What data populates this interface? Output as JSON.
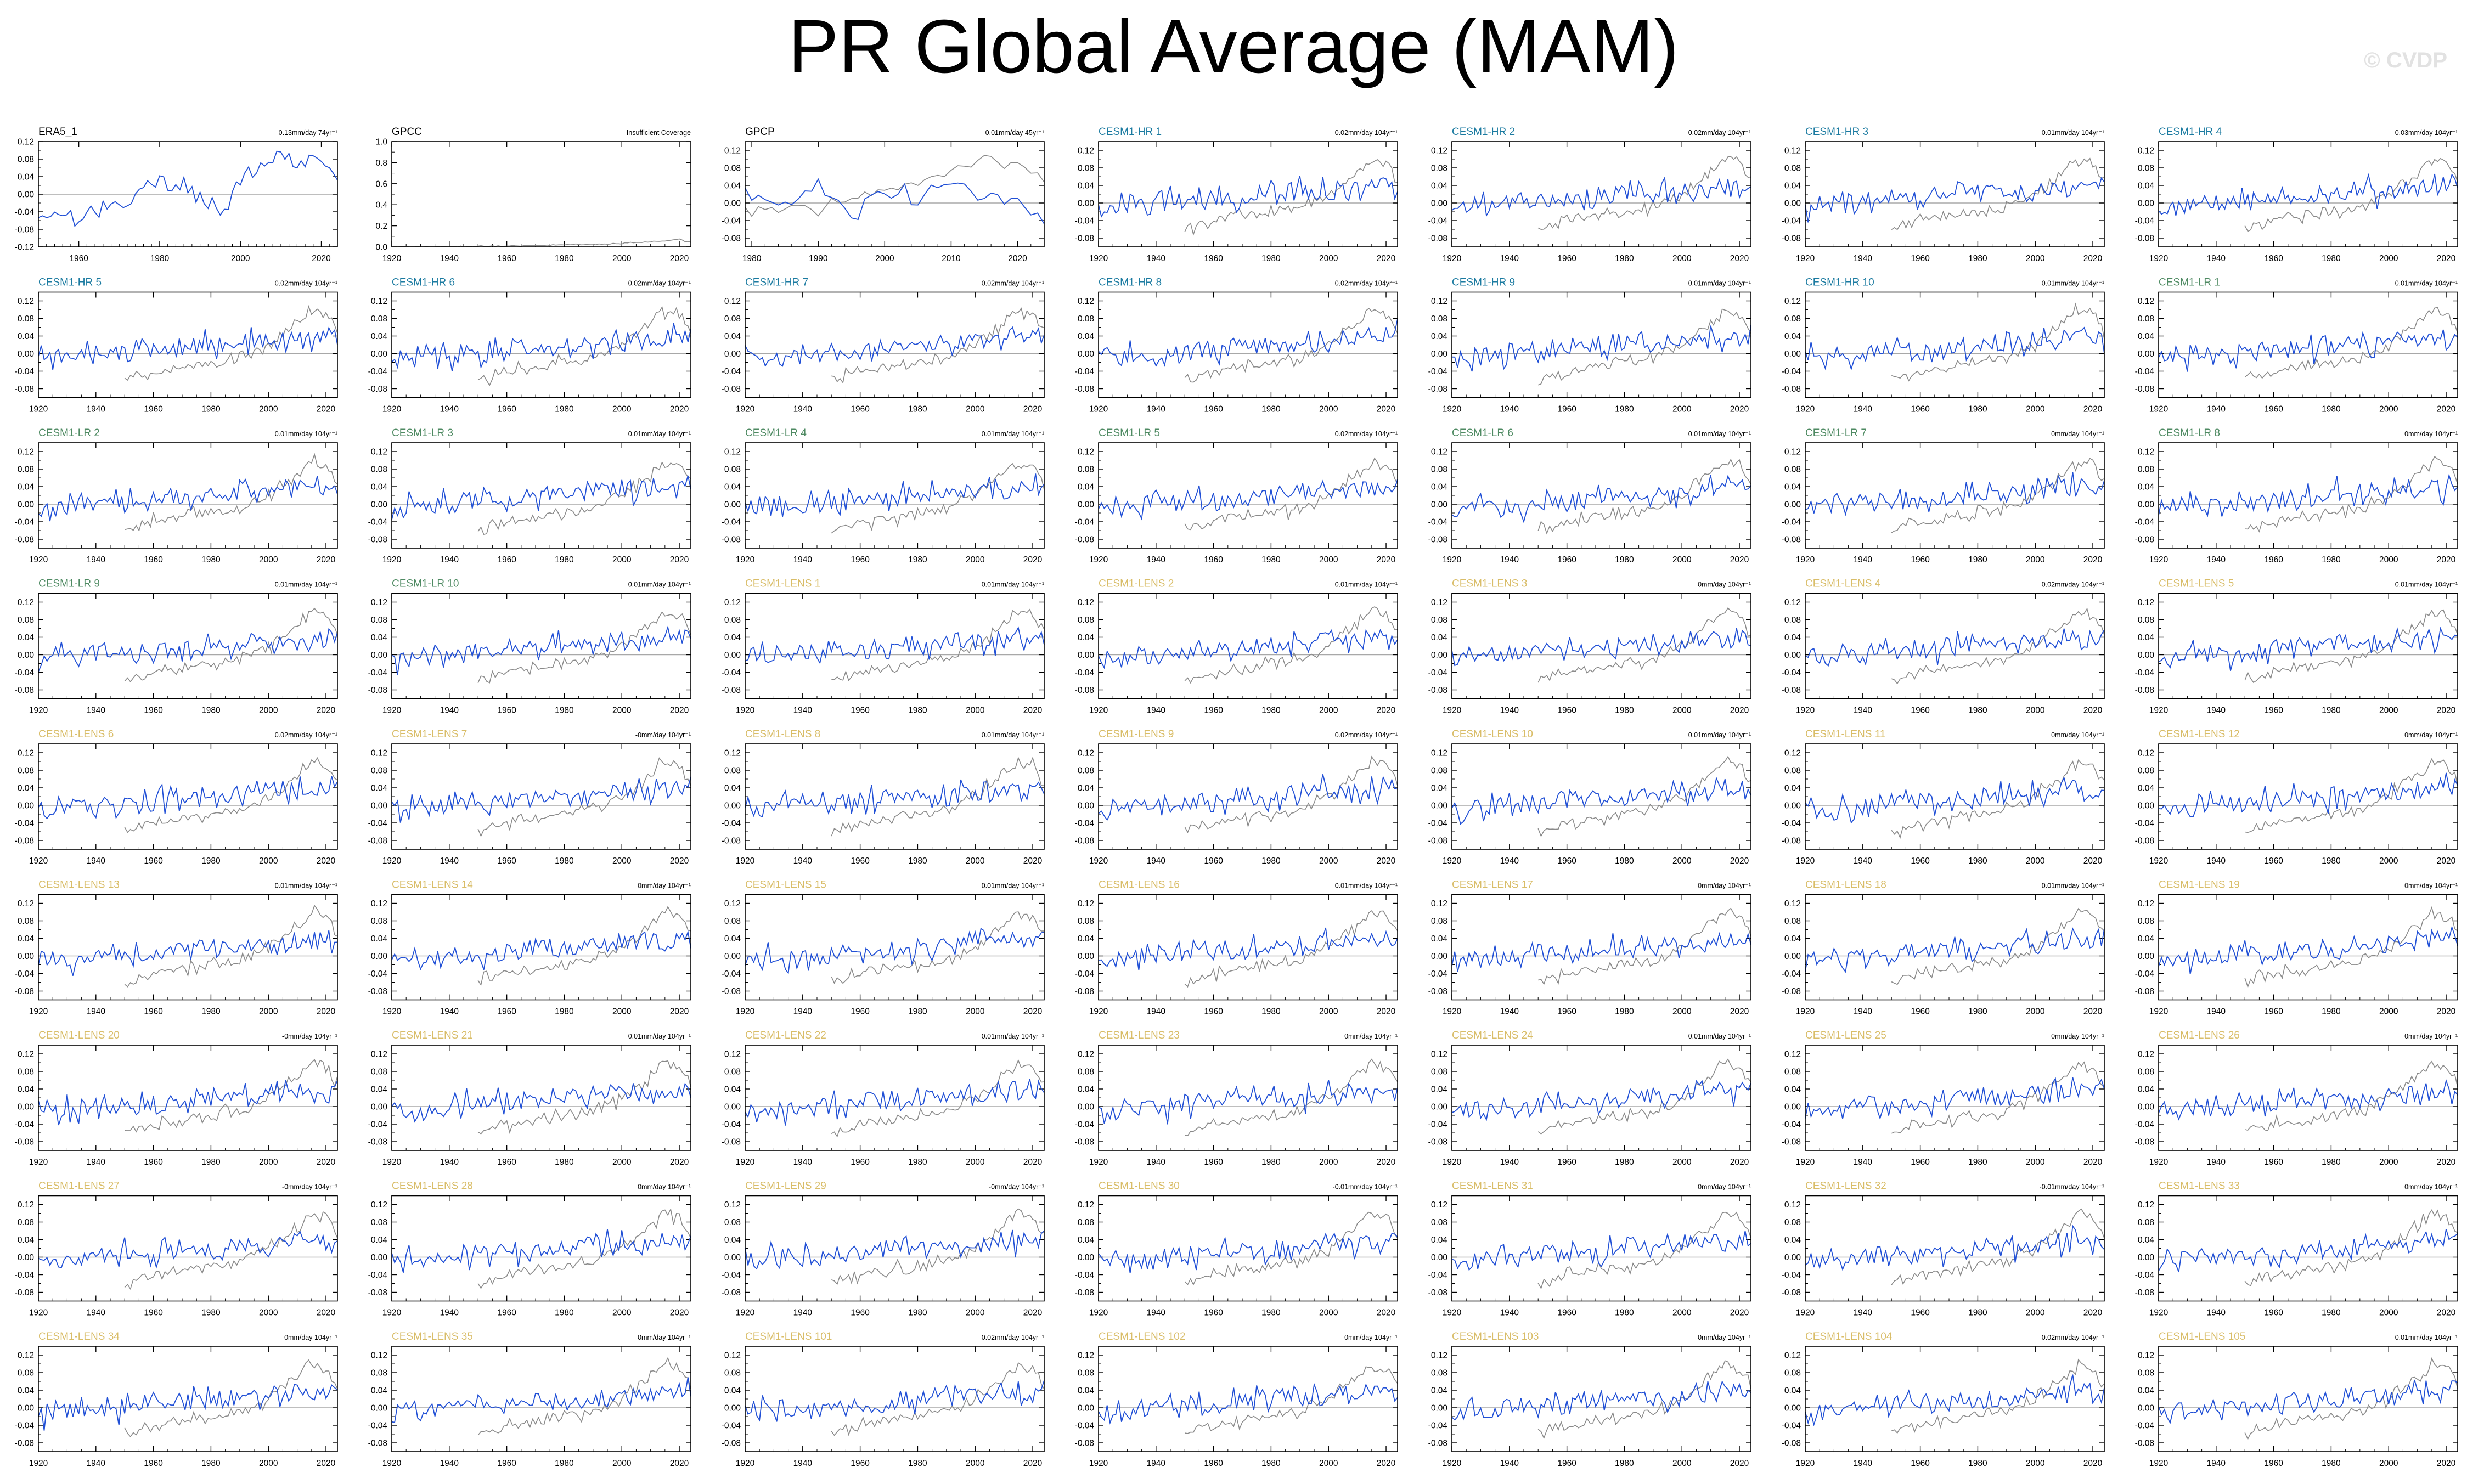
{
  "title": "PR Global Average (MAM)",
  "watermark": "© CVDP",
  "colors": {
    "obs_name": "#000000",
    "hr_name": "#1a7aa0",
    "lr_name": "#4e8a62",
    "lens_name": "#d9bd68",
    "series": "#2150d6",
    "reference": "#8a8a8a",
    "zero_line": "#a8a8a8"
  },
  "panels": [
    {
      "name": "ERA5_1",
      "trend": "0.13mm/day 74yr⁻¹",
      "group": "obs",
      "x_range": [
        1950,
        2024
      ],
      "y_ticks": [
        "0.12",
        "0.08",
        "0.04",
        "0.00",
        "-0.04",
        "-0.08",
        "-0.12"
      ],
      "x_ticks": [
        "1960",
        "1980",
        "2000",
        "2020"
      ],
      "has_reference": false
    },
    {
      "name": "GPCC",
      "trend": "Insufficient Coverage",
      "group": "obs",
      "x_range": [
        1920,
        2024
      ],
      "y_ticks": [
        "1.0",
        "0.8",
        "0.6",
        "0.4",
        "0.2",
        "0.0"
      ],
      "x_ticks": [
        "1920",
        "1940",
        "1960",
        "1980",
        "2000",
        "2020"
      ],
      "has_reference": false
    },
    {
      "name": "GPCP",
      "trend": "0.01mm/day 45yr⁻¹",
      "group": "obs",
      "x_range": [
        1979,
        2024
      ],
      "y_ticks": [
        "0.12",
        "0.08",
        "0.04",
        "0.00",
        "-0.04",
        "-0.08"
      ],
      "x_ticks": [
        "1980",
        "1990",
        "2000",
        "2010",
        "2020"
      ],
      "has_reference": true
    },
    {
      "name": "CESM1-HR 1",
      "trend": "0.02mm/day 104yr⁻¹",
      "group": "hr"
    },
    {
      "name": "CESM1-HR 2",
      "trend": "0.02mm/day 104yr⁻¹",
      "group": "hr"
    },
    {
      "name": "CESM1-HR 3",
      "trend": "0.01mm/day 104yr⁻¹",
      "group": "hr"
    },
    {
      "name": "CESM1-HR 4",
      "trend": "0.03mm/day 104yr⁻¹",
      "group": "hr"
    },
    {
      "name": "CESM1-HR 5",
      "trend": "0.02mm/day 104yr⁻¹",
      "group": "hr"
    },
    {
      "name": "CESM1-HR 6",
      "trend": "0.02mm/day 104yr⁻¹",
      "group": "hr"
    },
    {
      "name": "CESM1-HR 7",
      "trend": "0.02mm/day 104yr⁻¹",
      "group": "hr"
    },
    {
      "name": "CESM1-HR 8",
      "trend": "0.02mm/day 104yr⁻¹",
      "group": "hr"
    },
    {
      "name": "CESM1-HR 9",
      "trend": "0.01mm/day 104yr⁻¹",
      "group": "hr"
    },
    {
      "name": "CESM1-HR 10",
      "trend": "0.01mm/day 104yr⁻¹",
      "group": "hr"
    },
    {
      "name": "CESM1-LR 1",
      "trend": "0.01mm/day 104yr⁻¹",
      "group": "lr"
    },
    {
      "name": "CESM1-LR 2",
      "trend": "0.01mm/day 104yr⁻¹",
      "group": "lr"
    },
    {
      "name": "CESM1-LR 3",
      "trend": "0.01mm/day 104yr⁻¹",
      "group": "lr"
    },
    {
      "name": "CESM1-LR 4",
      "trend": "0.01mm/day 104yr⁻¹",
      "group": "lr"
    },
    {
      "name": "CESM1-LR 5",
      "trend": "0.02mm/day 104yr⁻¹",
      "group": "lr"
    },
    {
      "name": "CESM1-LR 6",
      "trend": "0.01mm/day 104yr⁻¹",
      "group": "lr"
    },
    {
      "name": "CESM1-LR 7",
      "trend": "0mm/day 104yr⁻¹",
      "group": "lr"
    },
    {
      "name": "CESM1-LR 8",
      "trend": "0mm/day 104yr⁻¹",
      "group": "lr"
    },
    {
      "name": "CESM1-LR 9",
      "trend": "0.01mm/day 104yr⁻¹",
      "group": "lr"
    },
    {
      "name": "CESM1-LR 10",
      "trend": "0.01mm/day 104yr⁻¹",
      "group": "lr"
    },
    {
      "name": "CESM1-LENS 1",
      "trend": "0.01mm/day 104yr⁻¹",
      "group": "lens"
    },
    {
      "name": "CESM1-LENS 2",
      "trend": "0.01mm/day 104yr⁻¹",
      "group": "lens"
    },
    {
      "name": "CESM1-LENS 3",
      "trend": "0mm/day 104yr⁻¹",
      "group": "lens"
    },
    {
      "name": "CESM1-LENS 4",
      "trend": "0.02mm/day 104yr⁻¹",
      "group": "lens"
    },
    {
      "name": "CESM1-LENS 5",
      "trend": "0.01mm/day 104yr⁻¹",
      "group": "lens"
    },
    {
      "name": "CESM1-LENS 6",
      "trend": "0.02mm/day 104yr⁻¹",
      "group": "lens"
    },
    {
      "name": "CESM1-LENS 7",
      "trend": "-0mm/day 104yr⁻¹",
      "group": "lens"
    },
    {
      "name": "CESM1-LENS 8",
      "trend": "0.01mm/day 104yr⁻¹",
      "group": "lens"
    },
    {
      "name": "CESM1-LENS 9",
      "trend": "0.02mm/day 104yr⁻¹",
      "group": "lens"
    },
    {
      "name": "CESM1-LENS 10",
      "trend": "0.01mm/day 104yr⁻¹",
      "group": "lens"
    },
    {
      "name": "CESM1-LENS 11",
      "trend": "0mm/day 104yr⁻¹",
      "group": "lens"
    },
    {
      "name": "CESM1-LENS 12",
      "trend": "0mm/day 104yr⁻¹",
      "group": "lens"
    },
    {
      "name": "CESM1-LENS 13",
      "trend": "0.01mm/day 104yr⁻¹",
      "group": "lens"
    },
    {
      "name": "CESM1-LENS 14",
      "trend": "0mm/day 104yr⁻¹",
      "group": "lens"
    },
    {
      "name": "CESM1-LENS 15",
      "trend": "0.01mm/day 104yr⁻¹",
      "group": "lens"
    },
    {
      "name": "CESM1-LENS 16",
      "trend": "0.01mm/day 104yr⁻¹",
      "group": "lens"
    },
    {
      "name": "CESM1-LENS 17",
      "trend": "0mm/day 104yr⁻¹",
      "group": "lens"
    },
    {
      "name": "CESM1-LENS 18",
      "trend": "0.01mm/day 104yr⁻¹",
      "group": "lens"
    },
    {
      "name": "CESM1-LENS 19",
      "trend": "0mm/day 104yr⁻¹",
      "group": "lens"
    },
    {
      "name": "CESM1-LENS 20",
      "trend": "-0mm/day 104yr⁻¹",
      "group": "lens"
    },
    {
      "name": "CESM1-LENS 21",
      "trend": "0.01mm/day 104yr⁻¹",
      "group": "lens"
    },
    {
      "name": "CESM1-LENS 22",
      "trend": "0.01mm/day 104yr⁻¹",
      "group": "lens"
    },
    {
      "name": "CESM1-LENS 23",
      "trend": "0mm/day 104yr⁻¹",
      "group": "lens"
    },
    {
      "name": "CESM1-LENS 24",
      "trend": "0.01mm/day 104yr⁻¹",
      "group": "lens"
    },
    {
      "name": "CESM1-LENS 25",
      "trend": "0mm/day 104yr⁻¹",
      "group": "lens"
    },
    {
      "name": "CESM1-LENS 26",
      "trend": "0mm/day 104yr⁻¹",
      "group": "lens"
    },
    {
      "name": "CESM1-LENS 27",
      "trend": "-0mm/day 104yr⁻¹",
      "group": "lens"
    },
    {
      "name": "CESM1-LENS 28",
      "trend": "0mm/day 104yr⁻¹",
      "group": "lens"
    },
    {
      "name": "CESM1-LENS 29",
      "trend": "-0mm/day 104yr⁻¹",
      "group": "lens"
    },
    {
      "name": "CESM1-LENS 30",
      "trend": "-0.01mm/day 104yr⁻¹",
      "group": "lens"
    },
    {
      "name": "CESM1-LENS 31",
      "trend": "0mm/day 104yr⁻¹",
      "group": "lens"
    },
    {
      "name": "CESM1-LENS 32",
      "trend": "-0.01mm/day 104yr⁻¹",
      "group": "lens"
    },
    {
      "name": "CESM1-LENS 33",
      "trend": "0mm/day 104yr⁻¹",
      "group": "lens"
    },
    {
      "name": "CESM1-LENS 34",
      "trend": "0mm/day 104yr⁻¹",
      "group": "lens"
    },
    {
      "name": "CESM1-LENS 35",
      "trend": "0mm/day 104yr⁻¹",
      "group": "lens"
    },
    {
      "name": "CESM1-LENS 101",
      "trend": "0.02mm/day 104yr⁻¹",
      "group": "lens"
    },
    {
      "name": "CESM1-LENS 102",
      "trend": "0mm/day 104yr⁻¹",
      "group": "lens"
    },
    {
      "name": "CESM1-LENS 103",
      "trend": "0mm/day 104yr⁻¹",
      "group": "lens"
    },
    {
      "name": "CESM1-LENS 104",
      "trend": "0.02mm/day 104yr⁻¹",
      "group": "lens"
    },
    {
      "name": "CESM1-LENS 105",
      "trend": "0.01mm/day 104yr⁻¹",
      "group": "lens"
    }
  ],
  "model_defaults": {
    "x_range": [
      1920,
      2024
    ],
    "y_ticks": [
      "0.12",
      "0.08",
      "0.04",
      "0.00",
      "-0.04",
      "-0.08"
    ],
    "x_ticks": [
      "1920",
      "1940",
      "1960",
      "1980",
      "2000",
      "2020"
    ],
    "has_reference": true
  },
  "chart_data": {
    "type": "line",
    "title": "PR Global Average (MAM)",
    "layout": "small multiples, 7 columns x 9 rows",
    "obs_panels": [
      {
        "name": "ERA5_1",
        "ylim": [
          -0.12,
          0.12
        ],
        "xlim": [
          1950,
          2024
        ],
        "x": [
          1950,
          1955,
          1960,
          1965,
          1970,
          1975,
          1980,
          1985,
          1990,
          1995,
          2000,
          2005,
          2010,
          2015,
          2020,
          2024
        ],
        "y": [
          -0.05,
          -0.04,
          -0.05,
          -0.03,
          -0.03,
          0.01,
          0.03,
          0.02,
          0.0,
          -0.04,
          0.02,
          0.06,
          0.09,
          0.07,
          0.08,
          0.03
        ]
      },
      {
        "name": "GPCC",
        "ylim": [
          0.0,
          1.0
        ],
        "xlim": [
          1920,
          2024
        ],
        "x": [
          1920,
          1940,
          1960,
          1980,
          2000,
          2010,
          2020,
          2024
        ],
        "y": [
          0.0,
          0.0,
          0.01,
          0.02,
          0.03,
          0.05,
          0.07,
          0.04
        ]
      },
      {
        "name": "GPCP",
        "ylim": [
          -0.1,
          0.14
        ],
        "xlim": [
          1979,
          2024
        ],
        "x": [
          1979,
          1985,
          1990,
          1995,
          2000,
          2005,
          2010,
          2015,
          2020,
          2024
        ],
        "y": [
          0.02,
          0.0,
          0.04,
          -0.03,
          0.03,
          0.01,
          0.05,
          0.02,
          0.01,
          -0.05
        ]
      }
    ],
    "model_panels": {
      "ylim": [
        -0.1,
        0.14
      ],
      "xlim": [
        1920,
        2024
      ],
      "series": [
        {
          "description": "model member anomaly (blue)",
          "trend_x": [
            1920,
            2024
          ],
          "trend_y": [
            -0.01,
            0.04
          ]
        },
        {
          "description": "observational reference (gray)",
          "x": [
            1950,
            1960,
            1970,
            1980,
            1990,
            2000,
            2010,
            2015,
            2020,
            2024
          ],
          "y": [
            -0.06,
            -0.04,
            -0.03,
            -0.02,
            -0.01,
            0.02,
            0.07,
            0.1,
            0.09,
            0.05
          ]
        }
      ]
    }
  }
}
